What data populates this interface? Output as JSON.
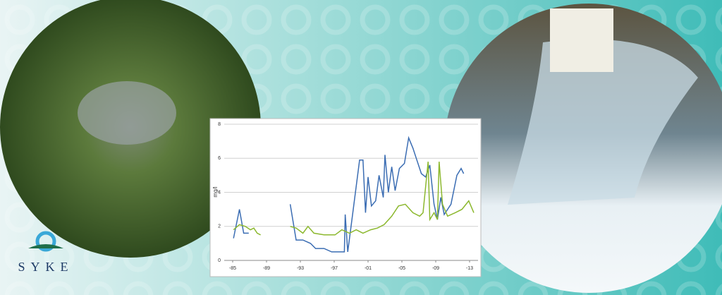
{
  "logo": {
    "text": "SYKE"
  },
  "chart_data": {
    "type": "line",
    "ylabel": "mg/l",
    "xlim": [
      1984,
      2014
    ],
    "ylim": [
      0,
      8
    ],
    "xticks": [
      {
        "value": 1985,
        "label": "-85"
      },
      {
        "value": 1989,
        "label": "-89"
      },
      {
        "value": 1993,
        "label": "-93"
      },
      {
        "value": 1997,
        "label": "-97"
      },
      {
        "value": 2001,
        "label": "-01"
      },
      {
        "value": 2005,
        "label": "-05"
      },
      {
        "value": 2009,
        "label": "-09"
      },
      {
        "value": 2013,
        "label": "-13"
      }
    ],
    "yticks": [
      0,
      2,
      4,
      6,
      8
    ],
    "grid": true,
    "series": [
      {
        "color": "#3b6db3",
        "x": [
          1985.1,
          1985.8,
          1986.3,
          1986.9,
          1990,
          1991.8,
          1992.5,
          1993.3,
          1994.2,
          1994.8,
          1995.8,
          1996.7,
          1998.2,
          1998.3,
          1998.6,
          1999.2,
          2000.0,
          2000.4,
          2000.7,
          2001.0,
          2001.4,
          2001.9,
          2002.3,
          2002.8,
          2003.0,
          2003.4,
          2003.8,
          2004.2,
          2004.7,
          2005.3,
          2005.8,
          2006.3,
          2006.7,
          2007.3,
          2007.8,
          2008.3,
          2008.8,
          2009.2,
          2009.6,
          2010.0,
          2010.8,
          2011.5,
          2012.0,
          2012.3
        ],
        "values": [
          1.3,
          3.0,
          1.6,
          1.6,
          null,
          3.3,
          1.2,
          1.2,
          1.0,
          0.7,
          0.7,
          0.5,
          0.5,
          2.7,
          0.5,
          2.8,
          5.9,
          5.9,
          2.8,
          4.9,
          3.2,
          3.5,
          5.0,
          3.7,
          6.2,
          4.0,
          5.5,
          4.1,
          5.4,
          5.7,
          7.2,
          6.6,
          6.0,
          5.1,
          4.9,
          5.6,
          3.3,
          2.4,
          3.7,
          2.7,
          3.3,
          5.0,
          5.4,
          5.1
        ]
      },
      {
        "color": "#8cb82e",
        "x": [
          1985.1,
          1985.8,
          1986.5,
          1987.1,
          1987.5,
          1987.9,
          1988.3,
          1990,
          1991.8,
          1992.5,
          1993.3,
          1993.9,
          1994.6,
          1995.8,
          1997.1,
          1997.9,
          1998.8,
          1999.6,
          2000.4,
          2001.3,
          2002.1,
          2002.9,
          2003.8,
          2004.6,
          2005.4,
          2006.3,
          2007.1,
          2007.5,
          2008.1,
          2008.3,
          2008.8,
          2009.2,
          2009.4,
          2009.8,
          2010.4,
          2011.3,
          2012.1,
          2012.9,
          2013.5
        ],
        "values": [
          1.8,
          2.1,
          2.0,
          1.8,
          1.9,
          1.6,
          1.5,
          null,
          2.0,
          1.9,
          1.6,
          2.0,
          1.6,
          1.5,
          1.5,
          1.8,
          1.6,
          1.8,
          1.6,
          1.8,
          1.9,
          2.1,
          2.6,
          3.2,
          3.3,
          2.8,
          2.6,
          2.8,
          5.8,
          2.4,
          2.8,
          2.4,
          5.8,
          3.3,
          2.6,
          2.8,
          3.0,
          3.5,
          2.8
        ]
      }
    ]
  }
}
